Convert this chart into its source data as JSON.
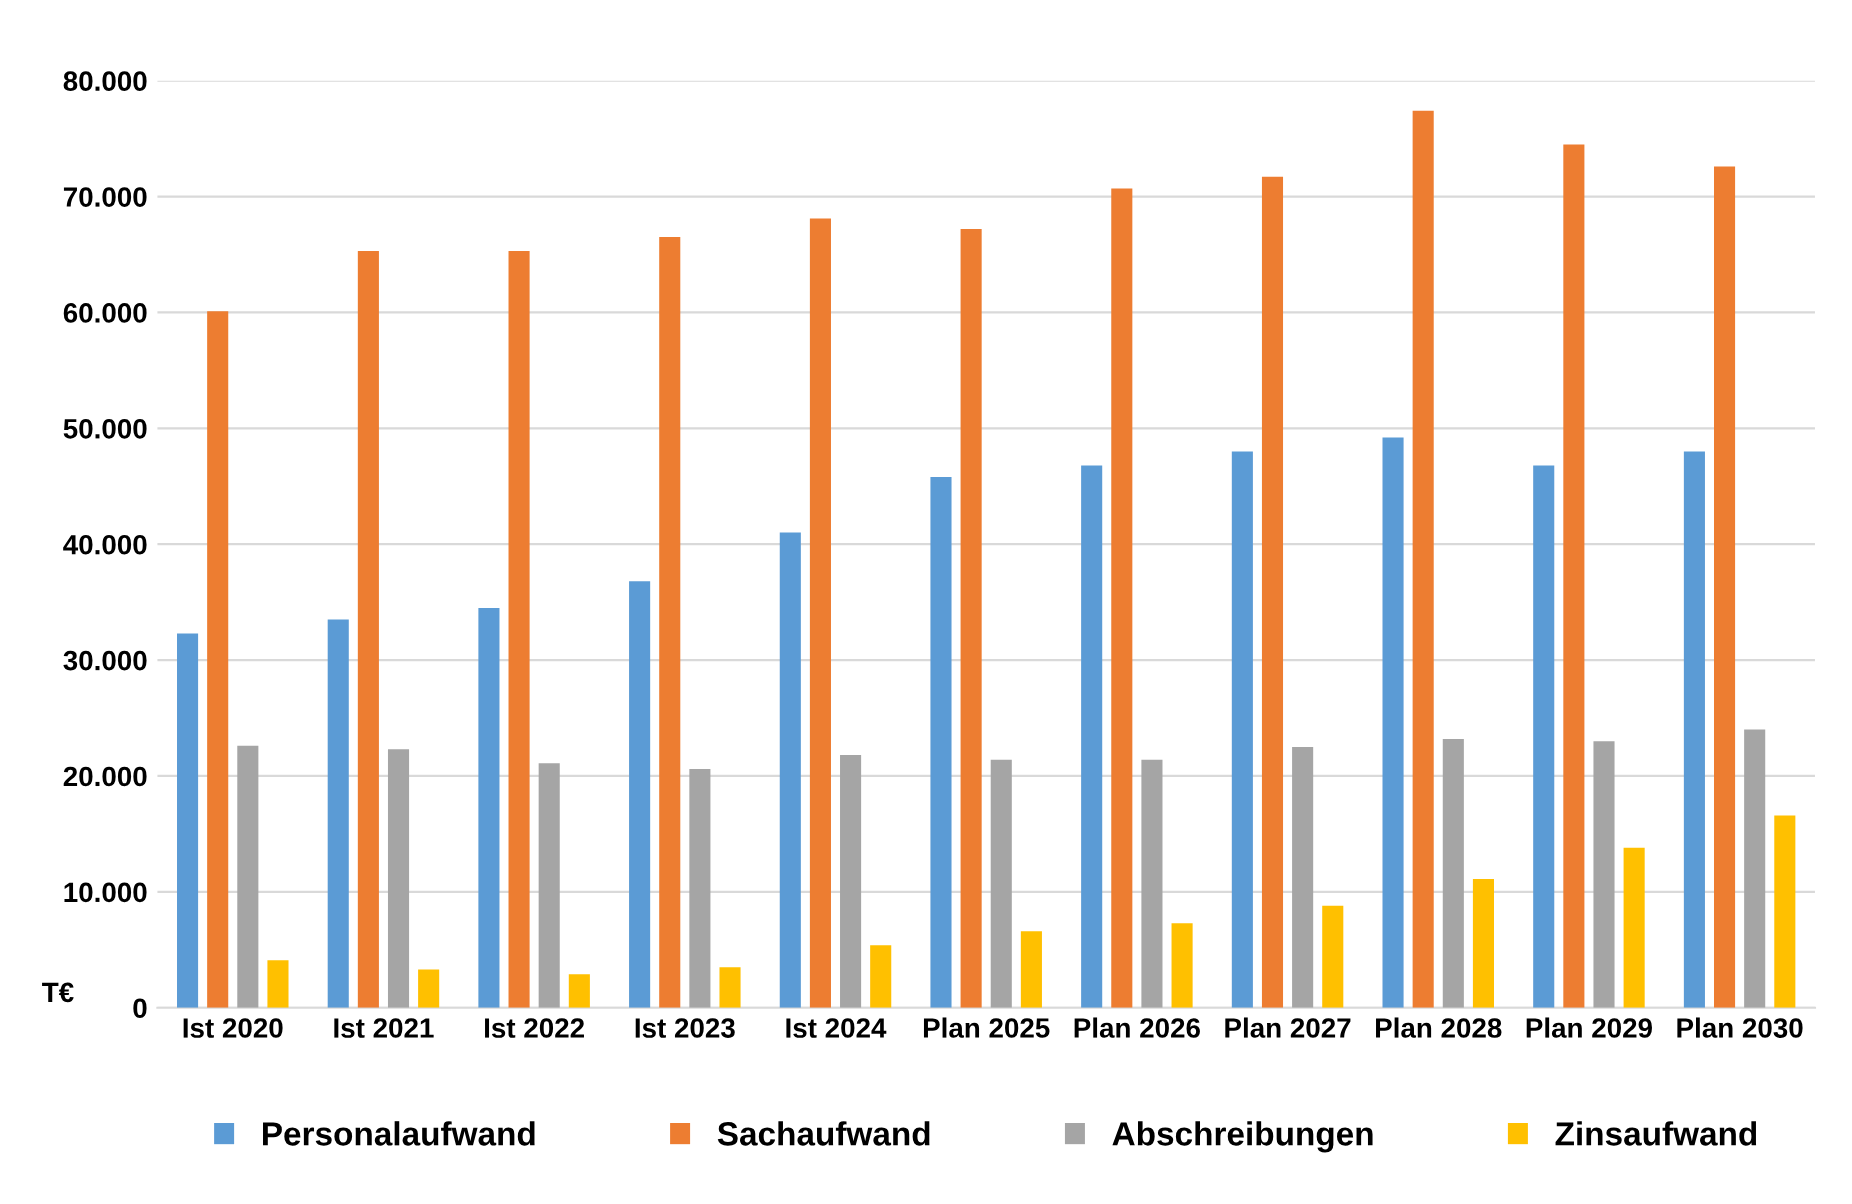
{
  "chart_data": {
    "type": "bar",
    "ylabel": "T€",
    "categories": [
      "Ist 2020",
      "Ist 2021",
      "Ist 2022",
      "Ist 2023",
      "Ist 2024",
      "Plan 2025",
      "Plan 2026",
      "Plan 2027",
      "Plan 2028",
      "Plan 2029",
      "Plan 2030"
    ],
    "series": [
      {
        "name": "Personalaufwand",
        "color": "#5b9bd5",
        "values": [
          32300,
          33500,
          34500,
          36800,
          41000,
          45800,
          46800,
          48000,
          49200,
          46800,
          48000
        ]
      },
      {
        "name": "Sachaufwand",
        "color": "#ed7d31",
        "values": [
          60100,
          65300,
          65300,
          66500,
          68100,
          67200,
          70700,
          71700,
          77400,
          74500,
          72600
        ]
      },
      {
        "name": "Abschreibungen",
        "color": "#a5a5a5",
        "values": [
          22600,
          22300,
          21100,
          20600,
          21800,
          21400,
          21400,
          22500,
          23200,
          23000,
          24000
        ]
      },
      {
        "name": "Zinsaufwand",
        "color": "#ffc000",
        "values": [
          4100,
          3300,
          2900,
          3500,
          5400,
          6600,
          7300,
          8800,
          11100,
          13800,
          16600
        ]
      }
    ],
    "ylim": [
      0,
      80000
    ],
    "yticks": [
      {
        "value": 0,
        "label": "0"
      },
      {
        "value": 10000,
        "label": "10.000"
      },
      {
        "value": 20000,
        "label": "20.000"
      },
      {
        "value": 30000,
        "label": "30.000"
      },
      {
        "value": 40000,
        "label": "40.000"
      },
      {
        "value": 50000,
        "label": "50.000"
      },
      {
        "value": 60000,
        "label": "60.000"
      },
      {
        "value": 70000,
        "label": "70.000"
      },
      {
        "value": 80000,
        "label": "80.000"
      }
    ],
    "grid": "y",
    "legend": "bottom"
  }
}
